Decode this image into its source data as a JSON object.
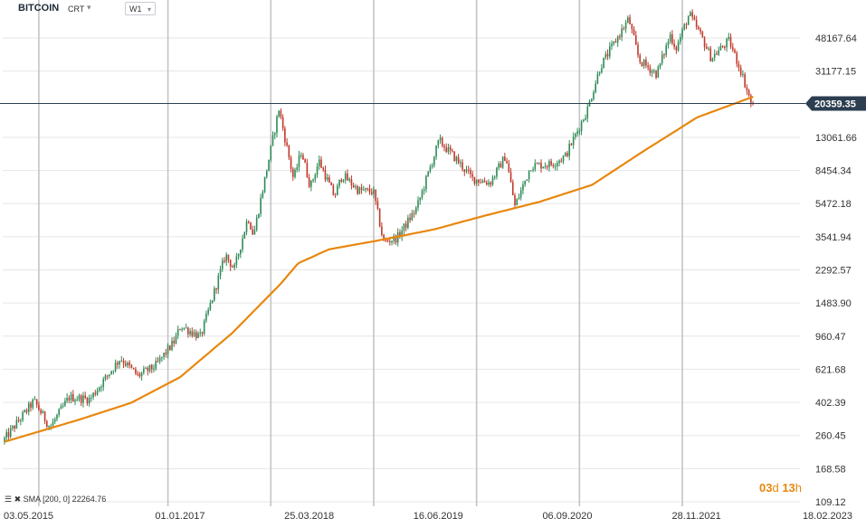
{
  "header": {
    "symbol": "BITCOIN",
    "chart_type": "CRT",
    "timeframe": "W1"
  },
  "indicator_legend": "SMA [200, 0] 22264.76",
  "countdown": {
    "days": "03",
    "days_unit": "d",
    "hours": "13",
    "hours_unit": "h"
  },
  "colors": {
    "up_candle": "#2e8b57",
    "down_candle": "#c0392b",
    "sma": "#e8870e",
    "price_line": "#2c3e50",
    "price_label_bg": "#2c3e50",
    "grid_h": "#e6e6e6",
    "grid_v": "#c4c4c4"
  },
  "chart_data": {
    "type": "candlestick",
    "scale": "log",
    "timeframe": "weekly",
    "y_ticks": [
      48167.64,
      31177.15,
      13061.66,
      8454.34,
      5472.18,
      3541.94,
      2292.57,
      1483.9,
      960.47,
      621.68,
      402.39,
      260.45,
      168.58,
      109.12
    ],
    "y_tick_labels": [
      "48167.64",
      "31177.15",
      "13061.66",
      "8454.34",
      "5472.18",
      "3541.94",
      "2292.57",
      "1483.90",
      "960.47",
      "621.68",
      "402.39",
      "260.45",
      "168.58",
      "109.12"
    ],
    "x_ticks": [
      "03.05.2015",
      "01.01.2017",
      "25.03.2018",
      "16.06.2019",
      "06.09.2020",
      "28.11.2021",
      "18.02.2023"
    ],
    "current_price": 20359.35,
    "current_price_label": "20359.35",
    "price_anchors": [
      [
        "2015-05-03",
        240
      ],
      [
        "2015-08-20",
        410
      ],
      [
        "2015-10-15",
        290
      ],
      [
        "2015-12-20",
        430
      ],
      [
        "2016-03-01",
        420
      ],
      [
        "2016-06-15",
        720
      ],
      [
        "2016-08-15",
        570
      ],
      [
        "2016-10-15",
        650
      ],
      [
        "2016-12-20",
        900
      ],
      [
        "2017-01-10",
        1100
      ],
      [
        "2017-03-20",
        950
      ],
      [
        "2017-06-15",
        2800
      ],
      [
        "2017-07-15",
        2300
      ],
      [
        "2017-09-01",
        4600
      ],
      [
        "2017-09-20",
        3600
      ],
      [
        "2017-12-17",
        19000
      ],
      [
        "2018-02-06",
        7500
      ],
      [
        "2018-03-05",
        11000
      ],
      [
        "2018-04-05",
        6800
      ],
      [
        "2018-05-05",
        9600
      ],
      [
        "2018-06-28",
        6000
      ],
      [
        "2018-07-25",
        8000
      ],
      [
        "2018-09-20",
        6500
      ],
      [
        "2018-11-10",
        6400
      ],
      [
        "2018-12-15",
        3300
      ],
      [
        "2019-02-01",
        3500
      ],
      [
        "2019-04-10",
        5200
      ],
      [
        "2019-06-26",
        12500
      ],
      [
        "2019-08-15",
        10200
      ],
      [
        "2019-10-20",
        7600
      ],
      [
        "2019-12-20",
        7200
      ],
      [
        "2020-02-12",
        10300
      ],
      [
        "2020-03-15",
        5300
      ],
      [
        "2020-05-10",
        9000
      ],
      [
        "2020-07-20",
        9200
      ],
      [
        "2020-09-06",
        10200
      ],
      [
        "2020-11-20",
        18500
      ],
      [
        "2021-01-05",
        33000
      ],
      [
        "2021-04-14",
        62000
      ],
      [
        "2021-05-20",
        36000
      ],
      [
        "2021-07-20",
        30000
      ],
      [
        "2021-09-05",
        50000
      ],
      [
        "2021-09-25",
        42000
      ],
      [
        "2021-11-10",
        66000
      ],
      [
        "2021-12-25",
        48000
      ],
      [
        "2022-01-25",
        37000
      ],
      [
        "2022-03-28",
        46500
      ],
      [
        "2022-05-09",
        31000
      ],
      [
        "2022-06-13",
        20359
      ]
    ],
    "sma_name": "SMA [200, 0]",
    "sma_last": 22264.76,
    "sma_anchors": [
      [
        "2015-05-03",
        240
      ],
      [
        "2016-01-15",
        320
      ],
      [
        "2016-07-15",
        400
      ],
      [
        "2017-01-01",
        560
      ],
      [
        "2017-07-01",
        1000
      ],
      [
        "2017-12-15",
        1900
      ],
      [
        "2018-02-15",
        2500
      ],
      [
        "2018-06-01",
        3000
      ],
      [
        "2018-12-01",
        3400
      ],
      [
        "2019-06-01",
        3900
      ],
      [
        "2019-12-01",
        4700
      ],
      [
        "2020-06-01",
        5600
      ],
      [
        "2020-12-01",
        7000
      ],
      [
        "2021-06-01",
        11000
      ],
      [
        "2021-12-01",
        17000
      ],
      [
        "2022-06-13",
        22264.76
      ]
    ]
  }
}
